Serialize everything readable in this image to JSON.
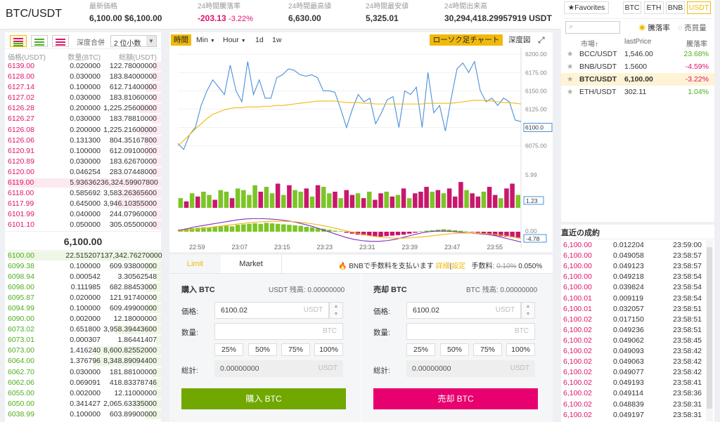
{
  "header": {
    "pair": "BTC/USDT",
    "stats": [
      {
        "label": "最新価格",
        "value": "6,100.00 $6,100.00",
        "color": "#333333"
      },
      {
        "label": "24時間騰落率",
        "value": "-203.13",
        "extra": "-3.22%",
        "color": "#e2116d"
      },
      {
        "label": "24時間最高値",
        "value": "6,630.00",
        "color": "#333333"
      },
      {
        "label": "24時間最安値",
        "value": "5,325.01",
        "color": "#333333"
      },
      {
        "label": "24時間出来高",
        "value": "30,294,418.29957919 USDT",
        "color": "#333333"
      }
    ]
  },
  "orderbook": {
    "depth_label": "深度合併",
    "depth_value": "2 位小数",
    "columns": [
      "価格(USDT)",
      "数量(BTC)",
      "総額(USDT)"
    ],
    "asks": [
      [
        "6139.00",
        "0.020000",
        "122.78000000",
        0.05
      ],
      [
        "6128.00",
        "0.030000",
        "183.84000000",
        0.06
      ],
      [
        "6127.14",
        "0.100000",
        "612.71400000",
        0.1
      ],
      [
        "6127.02",
        "0.030000",
        "183.81060000",
        0.06
      ],
      [
        "6126.28",
        "0.200000",
        "1,225.25600000",
        0.14
      ],
      [
        "6126.27",
        "0.030000",
        "183.78810000",
        0.06
      ],
      [
        "6126.08",
        "0.200000",
        "1,225.21600000",
        0.14
      ],
      [
        "6126.06",
        "0.131300",
        "804.35167800",
        0.11
      ],
      [
        "6120.91",
        "0.100000",
        "612.09100000",
        0.1
      ],
      [
        "6120.89",
        "0.030000",
        "183.62670000",
        0.06
      ],
      [
        "6120.00",
        "0.046254",
        "283.07448000",
        0.07
      ],
      [
        "6119.00",
        "5.936362",
        "36,324.59907800",
        1.0
      ],
      [
        "6118.00",
        "0.585692",
        "3,583.26365600",
        0.28
      ],
      [
        "6117.99",
        "0.645000",
        "3,946.10355000",
        0.3
      ],
      [
        "6101.99",
        "0.040000",
        "244.07960000",
        0.06
      ],
      [
        "6101.10",
        "0.050000",
        "305.05500000",
        0.07
      ]
    ],
    "last_price": "6,100.00",
    "bids": [
      [
        "6100.00",
        "22.515207",
        "137,342.76270000",
        1.0
      ],
      [
        "6099.38",
        "0.100000",
        "609.93800000",
        0.1
      ],
      [
        "6098.94",
        "0.000542",
        "3.30562548",
        0.03
      ],
      [
        "6098.00",
        "0.111985",
        "682.88453000",
        0.1
      ],
      [
        "6095.87",
        "0.020000",
        "121.91740000",
        0.05
      ],
      [
        "6094.99",
        "0.100000",
        "609.49900000",
        0.1
      ],
      [
        "6090.00",
        "0.002000",
        "12.18000000",
        0.03
      ],
      [
        "6073.02",
        "0.651800",
        "3,958.39443600",
        0.3
      ],
      [
        "6073.01",
        "0.000307",
        "1.86441407",
        0.03
      ],
      [
        "6073.00",
        "1.416240",
        "8,600.82552000",
        0.45
      ],
      [
        "6064.00",
        "1.376796",
        "8,348.89094400",
        0.44
      ],
      [
        "6062.70",
        "0.030000",
        "181.88100000",
        0.06
      ],
      [
        "6062.06",
        "0.069091",
        "418.83378746",
        0.07
      ],
      [
        "6055.00",
        "0.002000",
        "12.11000000",
        0.03
      ],
      [
        "6050.00",
        "0.341427",
        "2,065.63335000",
        0.18
      ],
      [
        "6038.99",
        "0.100000",
        "603.89900000",
        0.1
      ]
    ]
  },
  "chart": {
    "toolbar": {
      "time": "時間",
      "min": "Min",
      "hour": "Hour",
      "d1": "1d",
      "w1": "1w",
      "candle": "ローソク足チャート",
      "depth": "深度図"
    },
    "price_ticks": [
      "6200.00",
      "6175.00",
      "6150.00",
      "6125.00",
      "6100.00",
      "6075.00"
    ],
    "price_range": [
      6065,
      6205
    ],
    "current_price_tag": "6100.0",
    "volume_ticks": [
      "5.99",
      "1.23"
    ],
    "macd_ticks": [
      "0.00",
      "-4.78"
    ],
    "time_ticks": [
      "22:59",
      "23:07",
      "23:15",
      "23:23",
      "23:31",
      "23:39",
      "23:47",
      "23:55"
    ],
    "price_series": [
      6078,
      6070,
      6090,
      6100,
      6130,
      6150,
      6165,
      6155,
      6145,
      6185,
      6150,
      6135,
      6190,
      6145,
      6165,
      6140,
      6140,
      6168,
      6172,
      6180,
      6178,
      6172,
      6170,
      6172,
      6168,
      6150,
      6150,
      6148,
      6125,
      6100,
      6125,
      6145,
      6135,
      6140,
      6105,
      6120,
      6138,
      6142,
      6100,
      6150,
      6145,
      6155,
      6100,
      6175,
      6120,
      6130,
      6095,
      6140,
      6180,
      6188,
      6175,
      6190,
      6150,
      6135,
      6140,
      6130,
      6140,
      6135,
      6110,
      6108
    ],
    "ma_series": [
      6075,
      6082,
      6090,
      6098,
      6105,
      6112,
      6118,
      6121,
      6124,
      6126,
      6127,
      6127,
      6128,
      6128,
      6128,
      6129,
      6129,
      6130,
      6130,
      6131,
      6132,
      6133,
      6134,
      6135,
      6136,
      6136,
      6136,
      6136,
      6135,
      6134,
      6134,
      6134,
      6133,
      6133,
      6132,
      6132,
      6132,
      6132,
      6132,
      6132,
      6132,
      6132,
      6132,
      6133,
      6133,
      6133,
      6133,
      6133,
      6134,
      6135,
      6136,
      6137,
      6137,
      6137,
      6136,
      6135,
      6134,
      6134,
      6133,
      6132
    ],
    "volumes": [
      [
        1,
        0.3
      ],
      [
        0,
        0.2
      ],
      [
        1,
        0.45
      ],
      [
        0,
        0.35
      ],
      [
        1,
        0.5
      ],
      [
        1,
        0.4
      ],
      [
        0,
        0.25
      ],
      [
        1,
        0.55
      ],
      [
        1,
        0.5
      ],
      [
        0,
        0.3
      ],
      [
        1,
        0.6
      ],
      [
        1,
        0.55
      ],
      [
        1,
        0.4
      ],
      [
        1,
        0.7
      ],
      [
        0,
        0.5
      ],
      [
        1,
        0.65
      ],
      [
        1,
        0.45
      ],
      [
        0,
        0.75
      ],
      [
        1,
        0.4
      ],
      [
        0,
        0.7
      ],
      [
        1,
        0.55
      ],
      [
        1,
        0.5
      ],
      [
        0,
        0.6
      ],
      [
        1,
        0.35
      ],
      [
        0,
        0.7
      ],
      [
        1,
        0.65
      ],
      [
        1,
        0.45
      ],
      [
        0,
        0.5
      ],
      [
        1,
        0.3
      ],
      [
        0,
        0.55
      ],
      [
        0,
        0.4
      ],
      [
        1,
        0.45
      ],
      [
        0,
        0.3
      ],
      [
        1,
        0.5
      ],
      [
        0,
        0.25
      ],
      [
        0,
        0.45
      ],
      [
        1,
        0.5
      ],
      [
        0,
        0.35
      ],
      [
        1,
        0.4
      ],
      [
        0,
        0.6
      ],
      [
        1,
        0.3
      ],
      [
        0,
        0.45
      ],
      [
        0,
        0.5
      ],
      [
        0,
        0.65
      ],
      [
        1,
        0.5
      ],
      [
        0,
        0.55
      ],
      [
        1,
        0.45
      ],
      [
        0,
        0.6
      ],
      [
        0,
        0.35
      ],
      [
        0,
        0.8
      ],
      [
        1,
        0.55
      ],
      [
        0,
        0.45
      ],
      [
        0,
        0.35
      ],
      [
        1,
        0.5
      ],
      [
        0,
        0.65
      ],
      [
        0,
        0.4
      ],
      [
        1,
        0.3
      ],
      [
        0,
        0.6
      ],
      [
        0,
        0.75
      ],
      [
        1,
        0.4
      ]
    ],
    "macd_hist": [
      0.2,
      0.3,
      0.35,
      0.4,
      0.45,
      0.4,
      0.5,
      0.55,
      0.6,
      0.55,
      0.7,
      0.75,
      0.8,
      0.85,
      0.8,
      0.9,
      0.85,
      0.8,
      0.75,
      0.7,
      0.65,
      0.6,
      0.5,
      0.45,
      0.35,
      0.3,
      0.2,
      0.1,
      0.05,
      -0.1,
      -0.2,
      -0.3,
      -0.35,
      -0.4,
      -0.45,
      -0.5,
      -0.45,
      -0.4,
      -0.35,
      -0.3,
      -0.2,
      -0.1,
      0.05,
      0.1,
      0.15,
      0.2,
      0.25,
      0.2,
      0.15,
      0.1,
      0.05,
      -0.05,
      -0.1,
      -0.2,
      -0.3,
      -0.4,
      -0.45,
      -0.5,
      -0.55,
      -0.6
    ],
    "macd_line1": [
      0.1,
      0.2,
      0.35,
      0.45,
      0.55,
      0.65,
      0.75,
      0.85,
      0.92,
      0.95,
      0.95,
      0.92,
      0.88,
      0.8,
      0.7,
      0.55,
      0.4,
      0.2,
      0,
      -0.2,
      -0.4,
      -0.55,
      -0.65,
      -0.7,
      -0.7,
      -0.65,
      -0.55,
      -0.4,
      -0.25,
      -0.1,
      0,
      0.05,
      0.05,
      0,
      -0.05,
      -0.1,
      -0.15,
      -0.2,
      -0.3,
      -0.45,
      -0.6,
      -0.75
    ],
    "macd_line2": [
      0.05,
      0.1,
      0.18,
      0.25,
      0.33,
      0.4,
      0.48,
      0.55,
      0.62,
      0.68,
      0.72,
      0.75,
      0.76,
      0.75,
      0.72,
      0.66,
      0.58,
      0.48,
      0.36,
      0.22,
      0.08,
      -0.06,
      -0.18,
      -0.3,
      -0.38,
      -0.44,
      -0.47,
      -0.47,
      -0.44,
      -0.38,
      -0.32,
      -0.25,
      -0.18,
      -0.13,
      -0.1,
      -0.1,
      -0.12,
      -0.15,
      -0.2,
      -0.28,
      -0.38,
      -0.5
    ]
  },
  "trade": {
    "tab_limit": "Limit",
    "tab_market": "Market",
    "bnb_note": "BNBで手数料を支払います",
    "detail": "詳細",
    "settings": "設定",
    "fee_label": "手数料:",
    "fee_old": "0.10%",
    "fee_new": "0.050%",
    "buy": {
      "title": "購入 BTC",
      "balance": "USDT 残高: 0.00000000",
      "price_label": "価格:",
      "price": "6100.02",
      "price_unit": "USDT",
      "qty_label": "数量:",
      "qty_unit": "BTC",
      "total_label": "総計:",
      "total": "0.00000000",
      "total_unit": "USDT",
      "button": "購入 BTC"
    },
    "sell": {
      "title": "売却 BTC",
      "balance": "BTC 残高: 0.00000000",
      "price_label": "価格:",
      "price": "6100.02",
      "price_unit": "USDT",
      "qty_label": "数量:",
      "qty_unit": "BTC",
      "total_label": "総計:",
      "total": "0.00000000",
      "total_unit": "USDT",
      "button": "売却 BTC"
    },
    "percents": [
      "25%",
      "50%",
      "75%",
      "100%"
    ]
  },
  "market": {
    "favorites": "Favorites",
    "tabs": [
      "BTC",
      "ETH",
      "BNB",
      "USDT"
    ],
    "radio_change": "騰落率",
    "radio_volume": "売買量",
    "cols": [
      "市場",
      "lastPrice",
      "騰落率"
    ],
    "rows": [
      {
        "pair": "BCC/USDT",
        "price": "1,546.00",
        "change": "23.68%",
        "dir": "up"
      },
      {
        "pair": "BNB/USDT",
        "price": "1.5600",
        "change": "-4.59%",
        "dir": "down"
      },
      {
        "pair": "BTC/USDT",
        "price": "6,100.00",
        "change": "-3.22%",
        "dir": "down"
      },
      {
        "pair": "ETH/USDT",
        "price": "302.11",
        "change": "1.04%",
        "dir": "up"
      }
    ]
  },
  "trades": {
    "title": "直近の成約",
    "rows": [
      [
        "6,100.00",
        "0.012204",
        "23:59:00"
      ],
      [
        "6,100.00",
        "0.049058",
        "23:58:57"
      ],
      [
        "6,100.00",
        "0.049123",
        "23:58:57"
      ],
      [
        "6,100.00",
        "0.049218",
        "23:58:54"
      ],
      [
        "6,100.00",
        "0.039824",
        "23:58:54"
      ],
      [
        "6,100.01",
        "0.009119",
        "23:58:54"
      ],
      [
        "6,100.01",
        "0.032057",
        "23:58:51"
      ],
      [
        "6,100.02",
        "0.017150",
        "23:58:51"
      ],
      [
        "6,100.02",
        "0.049236",
        "23:58:51"
      ],
      [
        "6,100.02",
        "0.049062",
        "23:58:45"
      ],
      [
        "6,100.02",
        "0.049093",
        "23:58:42"
      ],
      [
        "6,100.02",
        "0.049063",
        "23:58:42"
      ],
      [
        "6,100.02",
        "0.049077",
        "23:58:42"
      ],
      [
        "6,100.02",
        "0.049193",
        "23:58:41"
      ],
      [
        "6,100.02",
        "0.049114",
        "23:58:36"
      ],
      [
        "6,100.02",
        "0.048839",
        "23:58:31"
      ],
      [
        "6,100.02",
        "0.049197",
        "23:58:31"
      ]
    ]
  },
  "colors": {
    "buy": "#70a800",
    "sell": "#e8006f",
    "accent": "#f0b90b",
    "up": "#4caf1c",
    "down": "#e2116d"
  }
}
